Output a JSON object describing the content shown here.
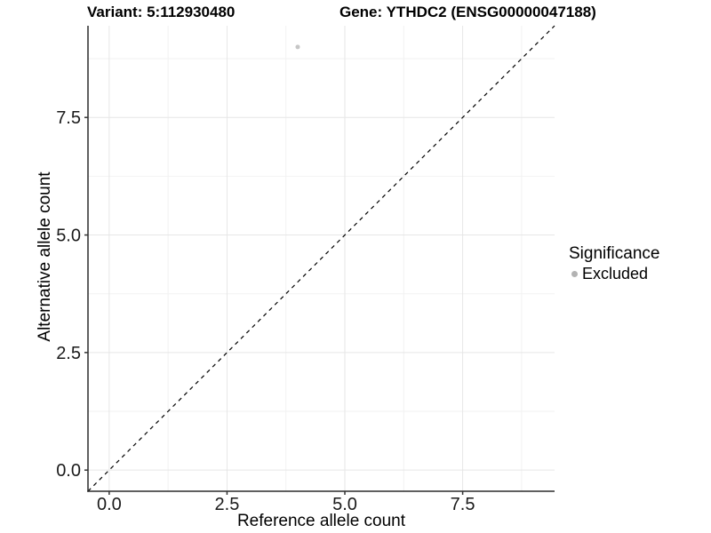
{
  "header": {
    "variant_title": "Variant: 5:112930480",
    "gene_title": "Gene: YTHDC2 (ENSG00000047188)"
  },
  "legend": {
    "title": "Significance",
    "items": [
      {
        "label": "Excluded",
        "color": "#b3b3b3"
      }
    ]
  },
  "chart_data": {
    "type": "scatter",
    "title": "Variant: 5:112930480   Gene: YTHDC2 (ENSG00000047188)",
    "xlabel": "Reference allele count",
    "ylabel": "Alternative allele count",
    "xlim": [
      -0.45,
      9.45
    ],
    "ylim": [
      -0.45,
      9.45
    ],
    "x_ticks": [
      0.0,
      2.5,
      5.0,
      7.5
    ],
    "y_ticks": [
      0.0,
      2.5,
      5.0,
      7.5
    ],
    "x_minor_ticks": [
      1.25,
      3.75,
      6.25,
      8.75
    ],
    "y_minor_ticks": [
      1.25,
      3.75,
      6.25,
      8.75
    ],
    "tick_label_format_decimals": 1,
    "grid": true,
    "legend_position": "right",
    "series": [
      {
        "name": "Excluded",
        "points": [
          {
            "x": 4,
            "y": 9
          }
        ],
        "color": "#c6c6c6"
      }
    ],
    "reference_line": {
      "kind": "identity",
      "slope": 1,
      "intercept": 0,
      "style": "dashed",
      "color": "#000000"
    }
  },
  "colors": {
    "background": "#ffffff",
    "grid_major": "#e6e6e6",
    "grid_minor": "#f2f2f2",
    "axis_line": "#2b2b2b",
    "tick_mark": "#333333",
    "tick_label": "#1a1a1a",
    "point": "#c6c6c6",
    "legend_point": "#b3b3b3",
    "dashed_line": "#000000"
  }
}
